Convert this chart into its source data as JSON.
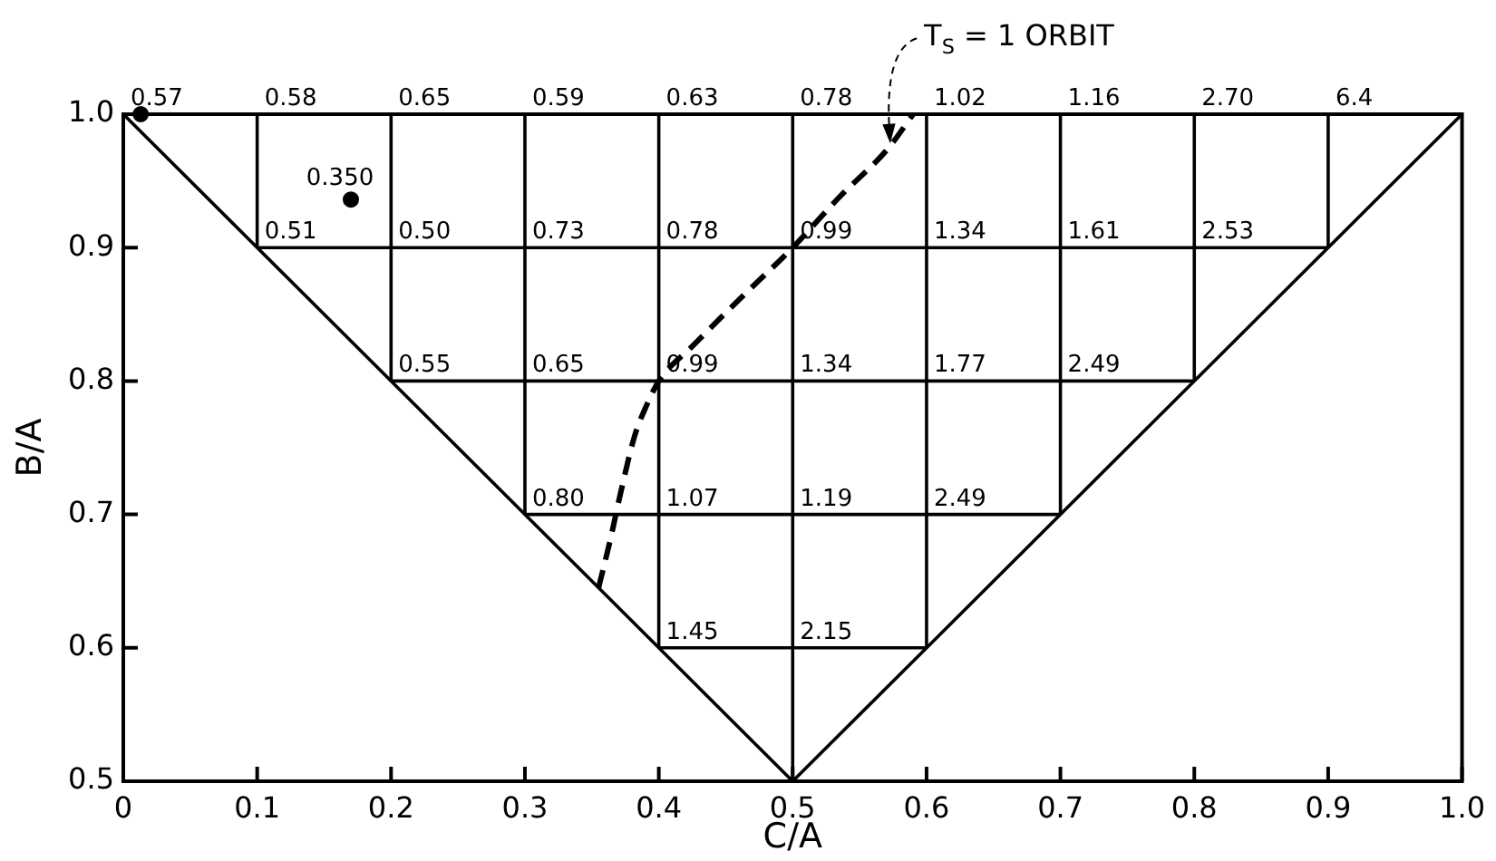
{
  "chart_data": {
    "type": "line",
    "xlabel": "C/A",
    "ylabel": "B/A",
    "xlim": [
      0,
      1
    ],
    "ylim": [
      0.5,
      1
    ],
    "xticks": [
      0,
      0.1,
      0.2,
      0.3,
      0.4,
      0.5,
      0.6,
      0.7,
      0.8,
      0.9,
      {
        "value": 1,
        "label": "1.0"
      }
    ],
    "yticks": [
      0.5,
      0.6,
      0.7,
      0.8,
      0.9,
      {
        "value": 1,
        "label": "1.0"
      }
    ],
    "series": [
      {
        "color": "#000000",
        "x": [
          0,
          0.5
        ],
        "values": [
          1,
          0.5
        ]
      },
      {
        "color": "#000000",
        "x": [
          0.5,
          1
        ],
        "values": [
          0.5,
          1
        ]
      },
      {
        "color": "#000000",
        "x": [
          0.1,
          0.9
        ],
        "values": [
          0.9,
          0.9
        ]
      },
      {
        "color": "#000000",
        "x": [
          0.2,
          0.8
        ],
        "values": [
          0.8,
          0.8
        ]
      },
      {
        "color": "#000000",
        "x": [
          0.3,
          0.7
        ],
        "values": [
          0.7,
          0.7
        ]
      },
      {
        "color": "#000000",
        "x": [
          0.4,
          0.6
        ],
        "values": [
          0.6,
          0.6
        ]
      },
      {
        "color": "#000000",
        "x": [
          0.1,
          0.1
        ],
        "values": [
          0.9,
          1
        ]
      },
      {
        "color": "#000000",
        "x": [
          0.2,
          0.2
        ],
        "values": [
          0.8,
          1
        ]
      },
      {
        "color": "#000000",
        "x": [
          0.3,
          0.3
        ],
        "values": [
          0.7,
          1
        ]
      },
      {
        "color": "#000000",
        "x": [
          0.4,
          0.4
        ],
        "values": [
          0.6,
          1
        ]
      },
      {
        "color": "#000000",
        "x": [
          0.5,
          0.5
        ],
        "values": [
          0.5,
          1
        ]
      },
      {
        "color": "#000000",
        "x": [
          0.6,
          0.6
        ],
        "values": [
          0.6,
          1
        ]
      },
      {
        "color": "#000000",
        "x": [
          0.7,
          0.7
        ],
        "values": [
          0.7,
          1
        ]
      },
      {
        "color": "#000000",
        "x": [
          0.8,
          0.8
        ],
        "values": [
          0.8,
          1
        ]
      },
      {
        "color": "#000000",
        "x": [
          0.9,
          0.9
        ],
        "values": [
          0.9,
          1
        ]
      },
      {
        "name": "T$_{S}$ = 1 ORBIT",
        "color": "#000000",
        "line_style": "dashed",
        "x": [
          0.355,
          0.364,
          0.371,
          0.382,
          0.391,
          0.4,
          0.425,
          0.461,
          0.5,
          0.535,
          0.571,
          0.59
        ],
        "values": [
          0.645,
          0.682,
          0.714,
          0.759,
          0.782,
          0.8,
          0.826,
          0.862,
          0.9,
          0.938,
          0.974,
          1
        ]
      },
      {
        "type": "scatter",
        "marker": "circle",
        "color": "#000000",
        "x": [
          0.013,
          0.17
        ],
        "values": [
          1,
          0.936
        ]
      }
    ],
    "annotations": [
      {
        "text": "0.57",
        "x": 0,
        "y": 1
      },
      {
        "text": "0.58",
        "x": 0.1,
        "y": 1
      },
      {
        "text": "0.65",
        "x": 0.2,
        "y": 1
      },
      {
        "text": "0.59",
        "x": 0.3,
        "y": 1
      },
      {
        "text": "0.63",
        "x": 0.4,
        "y": 1
      },
      {
        "text": "0.78",
        "x": 0.5,
        "y": 1
      },
      {
        "text": "1.02",
        "x": 0.6,
        "y": 1
      },
      {
        "text": "1.16",
        "x": 0.7,
        "y": 1
      },
      {
        "text": "2.70",
        "x": 0.8,
        "y": 1
      },
      {
        "text": "6.4",
        "x": 0.9,
        "y": 1
      },
      {
        "text": "0.51",
        "x": 0.1,
        "y": 0.9
      },
      {
        "text": "0.50",
        "x": 0.2,
        "y": 0.9
      },
      {
        "text": "0.73",
        "x": 0.3,
        "y": 0.9
      },
      {
        "text": "0.78",
        "x": 0.4,
        "y": 0.9
      },
      {
        "text": "0.99",
        "x": 0.5,
        "y": 0.9
      },
      {
        "text": "1.34",
        "x": 0.6,
        "y": 0.9
      },
      {
        "text": "1.61",
        "x": 0.7,
        "y": 0.9
      },
      {
        "text": "2.53",
        "x": 0.8,
        "y": 0.9
      },
      {
        "text": "0.55",
        "x": 0.2,
        "y": 0.8
      },
      {
        "text": "0.65",
        "x": 0.3,
        "y": 0.8
      },
      {
        "text": "0.99",
        "x": 0.4,
        "y": 0.8
      },
      {
        "text": "1.34",
        "x": 0.5,
        "y": 0.8
      },
      {
        "text": "1.77",
        "x": 0.6,
        "y": 0.8
      },
      {
        "text": "2.49",
        "x": 0.7,
        "y": 0.8
      },
      {
        "text": "0.80",
        "x": 0.3,
        "y": 0.7
      },
      {
        "text": "1.07",
        "x": 0.4,
        "y": 0.7
      },
      {
        "text": "1.19",
        "x": 0.5,
        "y": 0.7
      },
      {
        "text": "2.49",
        "x": 0.6,
        "y": 0.7
      },
      {
        "text": "1.45",
        "x": 0.4,
        "y": 0.6
      },
      {
        "text": "2.15",
        "x": 0.5,
        "y": 0.6
      },
      {
        "text": "0.350",
        "x": 0.17,
        "y": 0.936
      }
    ]
  }
}
